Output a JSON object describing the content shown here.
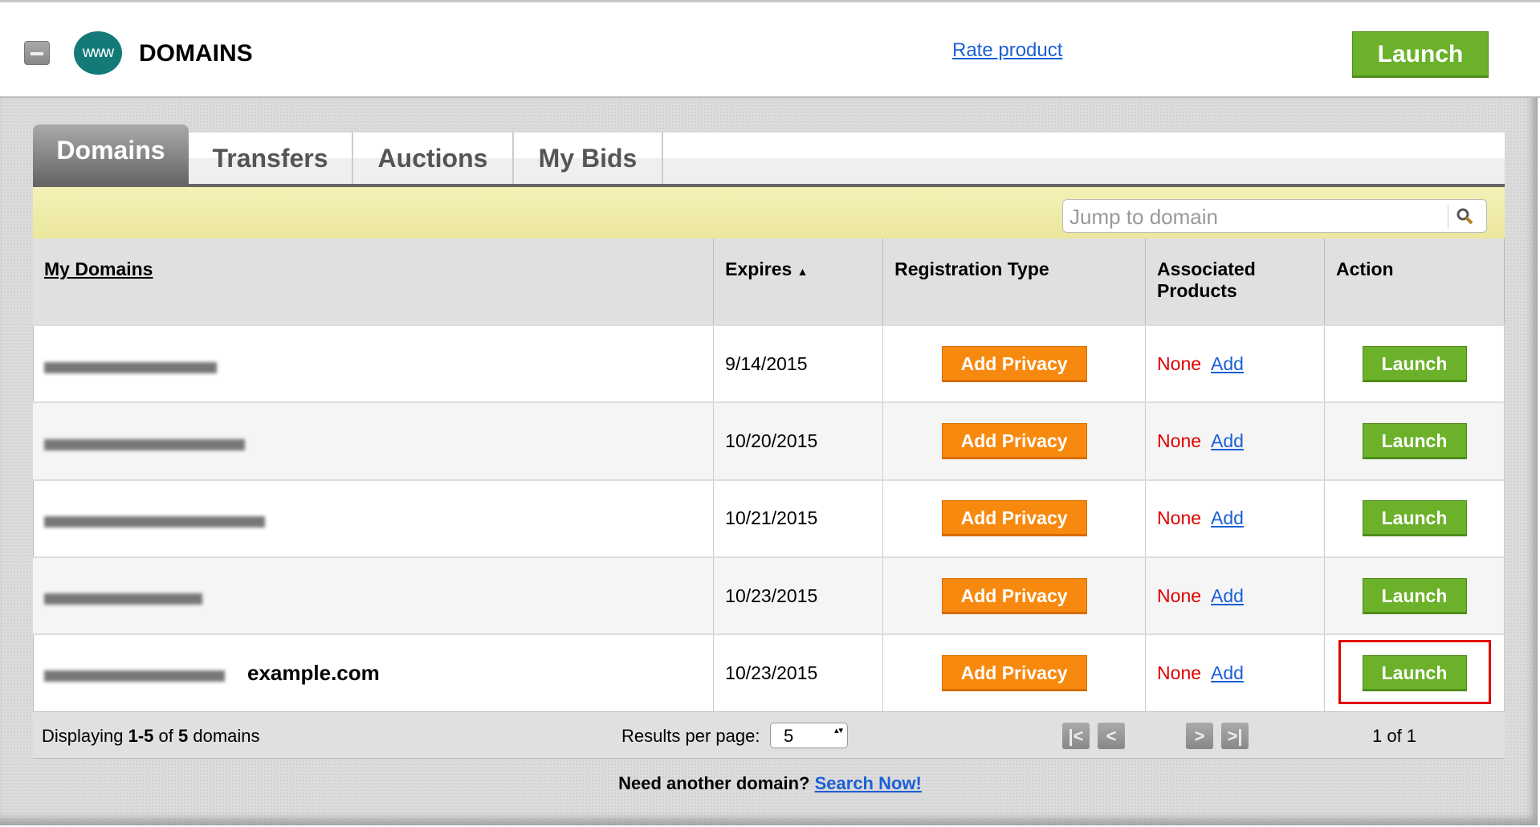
{
  "header": {
    "title": "DOMAINS",
    "logo_text": "www",
    "rate_link": "Rate product",
    "launch_label": "Launch"
  },
  "tabs": [
    {
      "label": "Domains",
      "active": true
    },
    {
      "label": "Transfers"
    },
    {
      "label": "Auctions"
    },
    {
      "label": "My Bids"
    }
  ],
  "search": {
    "placeholder": "Jump to domain",
    "icon": "search-icon"
  },
  "table": {
    "columns": [
      "My Domains",
      "Expires",
      "Registration Type",
      "Associated Products",
      "Action"
    ],
    "sort_indicator": "▲",
    "rows": [
      {
        "domain": "",
        "expires": "9/14/2015",
        "registration": "Add Privacy",
        "products": "None",
        "add": "Add",
        "action": "Launch"
      },
      {
        "domain": "",
        "expires": "10/20/2015",
        "registration": "Add Privacy",
        "products": "None",
        "add": "Add",
        "action": "Launch"
      },
      {
        "domain": "",
        "expires": "10/21/2015",
        "registration": "Add Privacy",
        "products": "None",
        "add": "Add",
        "action": "Launch"
      },
      {
        "domain": "",
        "expires": "10/23/2015",
        "registration": "Add Privacy",
        "products": "None",
        "add": "Add",
        "action": "Launch"
      },
      {
        "domain": "",
        "annotation": "example.com",
        "expires": "10/23/2015",
        "registration": "Add Privacy",
        "products": "None",
        "add": "Add",
        "action": "Launch",
        "highlighted": true
      }
    ]
  },
  "footer": {
    "displaying_prefix": "Displaying ",
    "range": "1-5",
    "of": " of ",
    "total": "5",
    "suffix": " domains",
    "results_label": "Results per page:",
    "results_value": "5",
    "page_text": "1 of 1"
  },
  "bottom": {
    "prompt": "Need another domain? ",
    "link": "Search Now!"
  },
  "colors": {
    "launch_green": "#6cb12a",
    "privacy_orange": "#f7890f",
    "none_red": "#e00000",
    "link_blue": "#1a5fd6",
    "highlight_red": "#e00000"
  }
}
